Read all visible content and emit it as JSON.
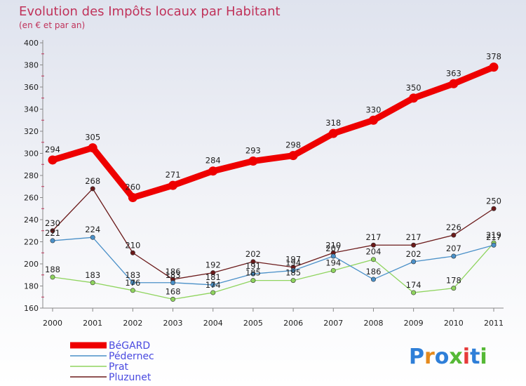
{
  "chart_data": {
    "type": "line",
    "title": "Evolution des Impôts locaux par Habitant",
    "subtitle": "(en € et par an)",
    "categories": [
      "2000",
      "2001",
      "2002",
      "2003",
      "2004",
      "2005",
      "2006",
      "2007",
      "2008",
      "2009",
      "2010",
      "2011"
    ],
    "ylim": [
      160,
      400
    ],
    "yticks": [
      160,
      180,
      200,
      220,
      240,
      260,
      280,
      300,
      320,
      340,
      360,
      380,
      400
    ],
    "grid": false,
    "legend_position": "bottom-left",
    "series": [
      {
        "name": "Pluzunet",
        "color": "#6b1a1a",
        "values": [
          230,
          268,
          210,
          186,
          192,
          202,
          197,
          210,
          217,
          217,
          226,
          250
        ]
      },
      {
        "name": "Prat",
        "color": "#8fd45e",
        "values": [
          188,
          183,
          176,
          168,
          174,
          185,
          185,
          194,
          204,
          174,
          178,
          219
        ]
      },
      {
        "name": "Pédernec",
        "color": "#4a90c8",
        "values": [
          221,
          224,
          183,
          183,
          181,
          191,
          194,
          207,
          186,
          202,
          207,
          217
        ]
      },
      {
        "name": "BéGARD",
        "color": "#ee0000",
        "values": [
          294,
          305,
          260,
          271,
          284,
          293,
          298,
          318,
          330,
          350,
          363,
          378
        ]
      }
    ],
    "legend_order": [
      "BéGARD",
      "Pédernec",
      "Prat",
      "Pluzunet"
    ]
  },
  "logo": {
    "text": "Proxiti",
    "letter_colors": [
      "#2f7fd8",
      "#e58a1c",
      "#2f7fd8",
      "#56b936",
      "#e63a3a",
      "#2f7fd8",
      "#56b936"
    ]
  }
}
